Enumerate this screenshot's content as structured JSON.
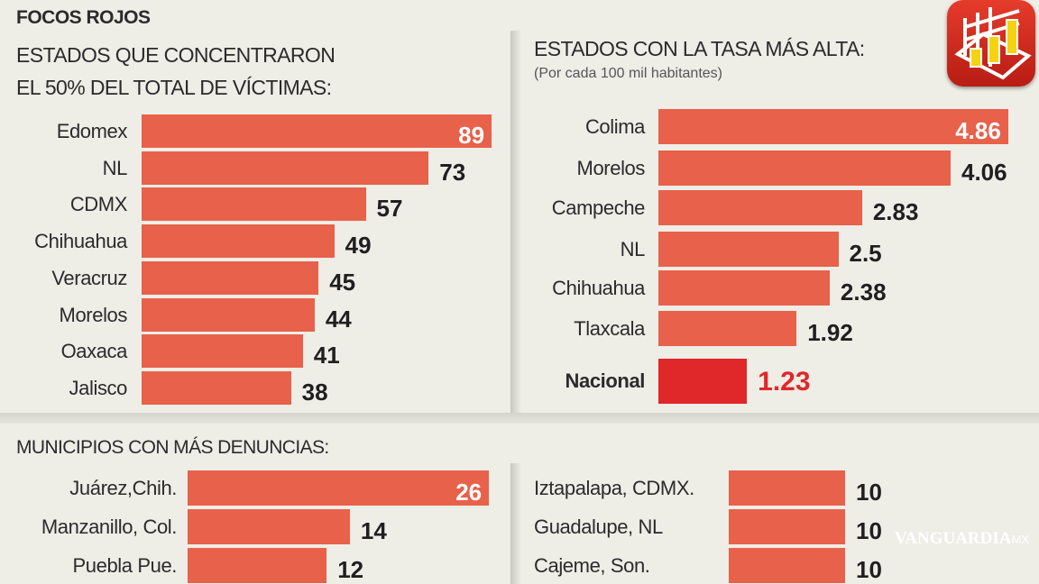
{
  "header": {
    "title": "FOCOS ROJOS",
    "watermark": "VANGUARDIA",
    "watermark_suffix": "MX"
  },
  "colors": {
    "bar": "#e8614a",
    "highlight_bar": "#e0272a",
    "highlight_text": "#e0272a",
    "background": "#eeede6"
  },
  "chart_data": [
    {
      "type": "bar",
      "orientation": "horizontal",
      "title_lines": [
        "ESTADOS QUE CONCENTRARON",
        "EL 50% DEL TOTAL DE VÍCTIMAS:"
      ],
      "categories": [
        "Edomex",
        "NL",
        "CDMX",
        "Chihuahua",
        "Veracruz",
        "Morelos",
        "Oaxaca",
        "Jalisco"
      ],
      "values": [
        89,
        73,
        57,
        49,
        45,
        44,
        41,
        38
      ],
      "labels": [
        "89",
        "73",
        "57",
        "49",
        "45",
        "44",
        "41",
        "38"
      ]
    },
    {
      "type": "bar",
      "orientation": "horizontal",
      "title": "ESTADOS CON LA TASA MÁS ALTA:",
      "subtitle": "(Por cada 100 mil habitantes)",
      "categories": [
        "Colima",
        "Morelos",
        "Campeche",
        "NL",
        "Chihuahua",
        "Tlaxcala",
        "Nacional"
      ],
      "values": [
        4.86,
        4.06,
        2.83,
        2.5,
        2.38,
        1.92,
        1.23
      ],
      "labels": [
        "4.86",
        "4.06",
        "2.83",
        "2.5",
        "2.38",
        "1.92",
        "1.23"
      ],
      "highlight": "Nacional"
    },
    {
      "type": "bar",
      "orientation": "horizontal",
      "title": "MUNICIPIOS CON MÁS DENUNCIAS:",
      "categories": [
        "Juárez,Chih.",
        "Manzanillo, Col.",
        "Puebla Pue."
      ],
      "values": [
        26,
        14,
        12
      ],
      "labels": [
        "26",
        "14",
        "12"
      ]
    },
    {
      "type": "bar",
      "orientation": "horizontal",
      "categories": [
        "Iztapalapa, CDMX.",
        "Guadalupe, NL",
        "Cajeme, Son."
      ],
      "values": [
        10,
        10,
        10
      ],
      "labels": [
        "10",
        "10",
        "10"
      ]
    }
  ],
  "icon": "bar-chart-app-icon"
}
